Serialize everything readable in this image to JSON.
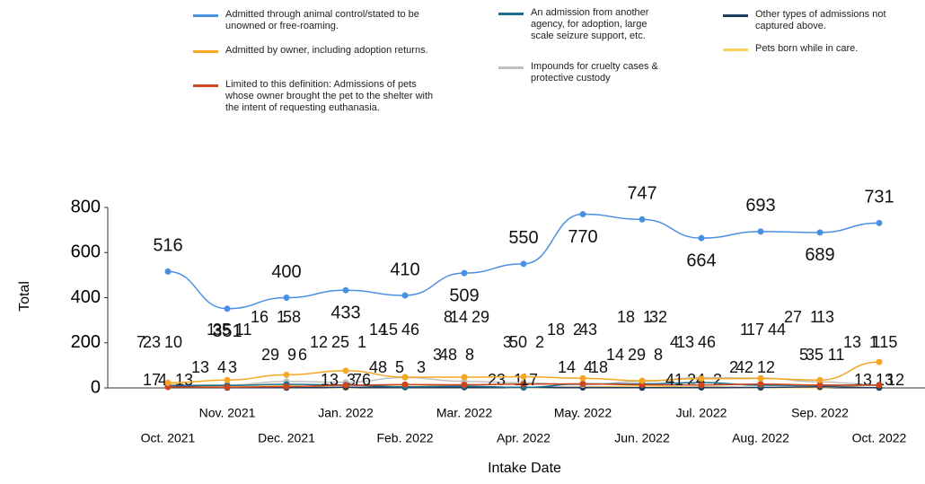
{
  "chart_data": {
    "type": "line",
    "x_label": "Intake Date",
    "y_label": "Total",
    "categories": [
      "Oct. 2021",
      "Nov. 2021",
      "Dec. 2021",
      "Jan. 2022",
      "Feb. 2022",
      "Mar. 2022",
      "Apr. 2022",
      "May. 2022",
      "Jun. 2022",
      "Jul. 2022",
      "Aug. 2022",
      "Sep. 2022",
      "Oct. 2022"
    ],
    "ylim": [
      0,
      800
    ],
    "yticks": [
      0,
      200,
      400,
      600,
      800
    ],
    "series": [
      {
        "name": "Admitted through animal control/stated to be unowned or free-roaming.",
        "color": "#4a90e2",
        "values": [
          516,
          351,
          400,
          433,
          410,
          509,
          550,
          770,
          747,
          664,
          693,
          689,
          731
        ]
      },
      {
        "name": "Admitted by owner, including adoption returns.",
        "color": "#f5a623",
        "values": [
          23,
          35,
          58,
          76,
          48,
          48,
          50,
          43,
          32,
          41,
          42,
          35,
          115
        ]
      },
      {
        "name": "Limited to this definition: Admissions of pets whose owner brought the pet to the shelter with the intent of requesting euthanasia.",
        "color": "#d0451b",
        "values": [
          4,
          3,
          6,
          12,
          15,
          14,
          17,
          18,
          14,
          13,
          17,
          13,
          12
        ]
      },
      {
        "name": "An admission from another agency, for adoption, large scale seizure support, etc.",
        "color": "#1b6e8e",
        "values": [
          10,
          11,
          16,
          13,
          5,
          8,
          2,
          18,
          18,
          24,
          12,
          11,
          13
        ]
      },
      {
        "name": "Impounds for cruelty cases & protective custody",
        "color": "#c0c0c0",
        "values": [
          13,
          13,
          29,
          25,
          46,
          29,
          23,
          14,
          29,
          46,
          44,
          27,
          13
        ]
      },
      {
        "name": "Other types of admissions not captured above.",
        "color": "#1f3a5f",
        "values": [
          7,
          1,
          1,
          3,
          3,
          3,
          3,
          2,
          1,
          2,
          2,
          5,
          1
        ]
      },
      {
        "name": "Pets born while in care.",
        "color": "#f8d15c",
        "values": [
          17,
          4,
          9,
          1,
          14,
          8,
          1,
          4,
          8,
          4,
          1,
          1,
          13
        ]
      }
    ]
  }
}
